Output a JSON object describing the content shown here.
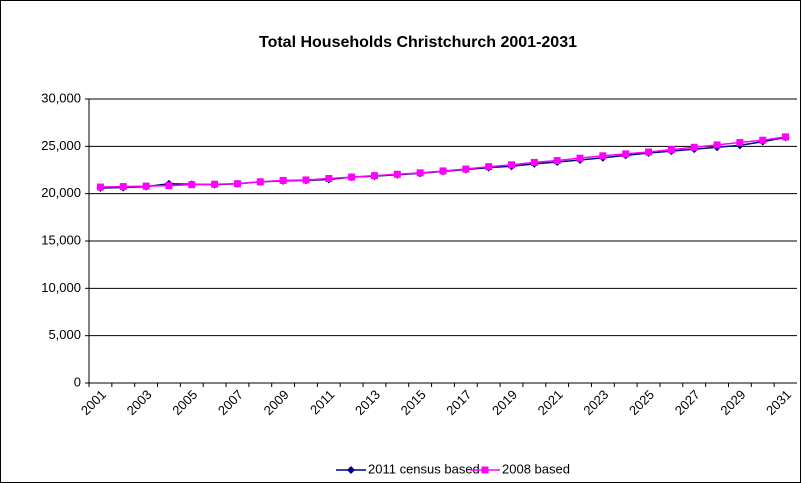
{
  "chart_data": {
    "type": "line",
    "title": "Total Households Christchurch 2001-2031",
    "categories": [
      "2001",
      null,
      "2003",
      null,
      "2005",
      null,
      "2007",
      null,
      "2009",
      null,
      "2011",
      null,
      "2013",
      null,
      "2015",
      null,
      "2017",
      null,
      "2019",
      null,
      "2021",
      null,
      "2023",
      null,
      "2025",
      null,
      "2027",
      null,
      "2029",
      null,
      "2031"
    ],
    "series": [
      {
        "name": "2011 census based",
        "color": "#000080",
        "marker": "diamond",
        "values": [
          20600,
          20650,
          20750,
          21050,
          21000,
          20950,
          21050,
          21250,
          21350,
          21400,
          21500,
          21750,
          21850,
          22000,
          22150,
          22350,
          22550,
          22750,
          22900,
          23150,
          23350,
          23550,
          23800,
          24050,
          24300,
          24500,
          24700,
          24900,
          25100,
          25500,
          25950
        ]
      },
      {
        "name": "2008 based",
        "color": "#ff00ff",
        "marker": "square",
        "values": [
          20700,
          20750,
          20800,
          20850,
          20950,
          21000,
          21050,
          21250,
          21400,
          21450,
          21600,
          21750,
          21900,
          22050,
          22200,
          22400,
          22600,
          22850,
          23050,
          23300,
          23500,
          23750,
          24000,
          24200,
          24400,
          24650,
          24900,
          25150,
          25400,
          25650,
          26000
        ]
      }
    ],
    "ylim": [
      0,
      30000
    ],
    "yticks": [
      0,
      {
        "value": 5000,
        "label": "5,000"
      },
      {
        "value": 10000,
        "label": "10,000"
      },
      {
        "value": 15000,
        "label": "15,000"
      },
      {
        "value": 20000,
        "label": "20,000"
      },
      {
        "value": 25000,
        "label": "25,000"
      },
      {
        "value": 30000,
        "label": "30,000"
      }
    ],
    "grid": true,
    "legend": "bottom"
  }
}
